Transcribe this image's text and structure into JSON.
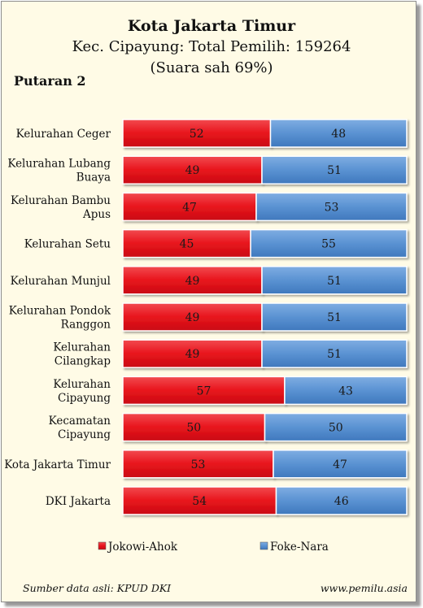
{
  "header": {
    "title": "Kota Jakarta Timur",
    "subtitle_line1": "Kec. Cipayung: Total Pemilih: 159264",
    "subtitle_line2": "(Suara sah 69%)",
    "round": "Putaran 2"
  },
  "footer": {
    "source": "Sumber data asli: KPUD DKI",
    "website": "www.pemilu.asia"
  },
  "colors": {
    "series_1": "#e8141c",
    "series_2": "#4e88cc",
    "background": "#fffbe6"
  },
  "chart_data": {
    "type": "bar",
    "orientation": "horizontal",
    "stacked": true,
    "percent": true,
    "xlim": [
      0,
      100
    ],
    "grid": false,
    "legend_position": "bottom",
    "categories": [
      [
        "Kelurahan Ceger"
      ],
      [
        "Kelurahan Lubang",
        "Buaya"
      ],
      [
        "Kelurahan Bambu",
        "Apus"
      ],
      [
        "Kelurahan Setu"
      ],
      [
        "Kelurahan Munjul"
      ],
      [
        "Kelurahan Pondok",
        "Ranggon"
      ],
      [
        "Kelurahan",
        "Cilangkap"
      ],
      [
        "Kelurahan",
        "Cipayung"
      ],
      [
        "Kecamatan",
        "Cipayung"
      ],
      [
        "Kota Jakarta Timur"
      ],
      [
        "DKI Jakarta"
      ]
    ],
    "series": [
      {
        "name": "Jokowi-Ahok",
        "values": [
          52,
          49,
          47,
          45,
          49,
          49,
          49,
          57,
          50,
          53,
          54
        ]
      },
      {
        "name": "Foke-Nara",
        "values": [
          48,
          51,
          53,
          55,
          51,
          51,
          51,
          43,
          50,
          47,
          46
        ]
      }
    ]
  }
}
